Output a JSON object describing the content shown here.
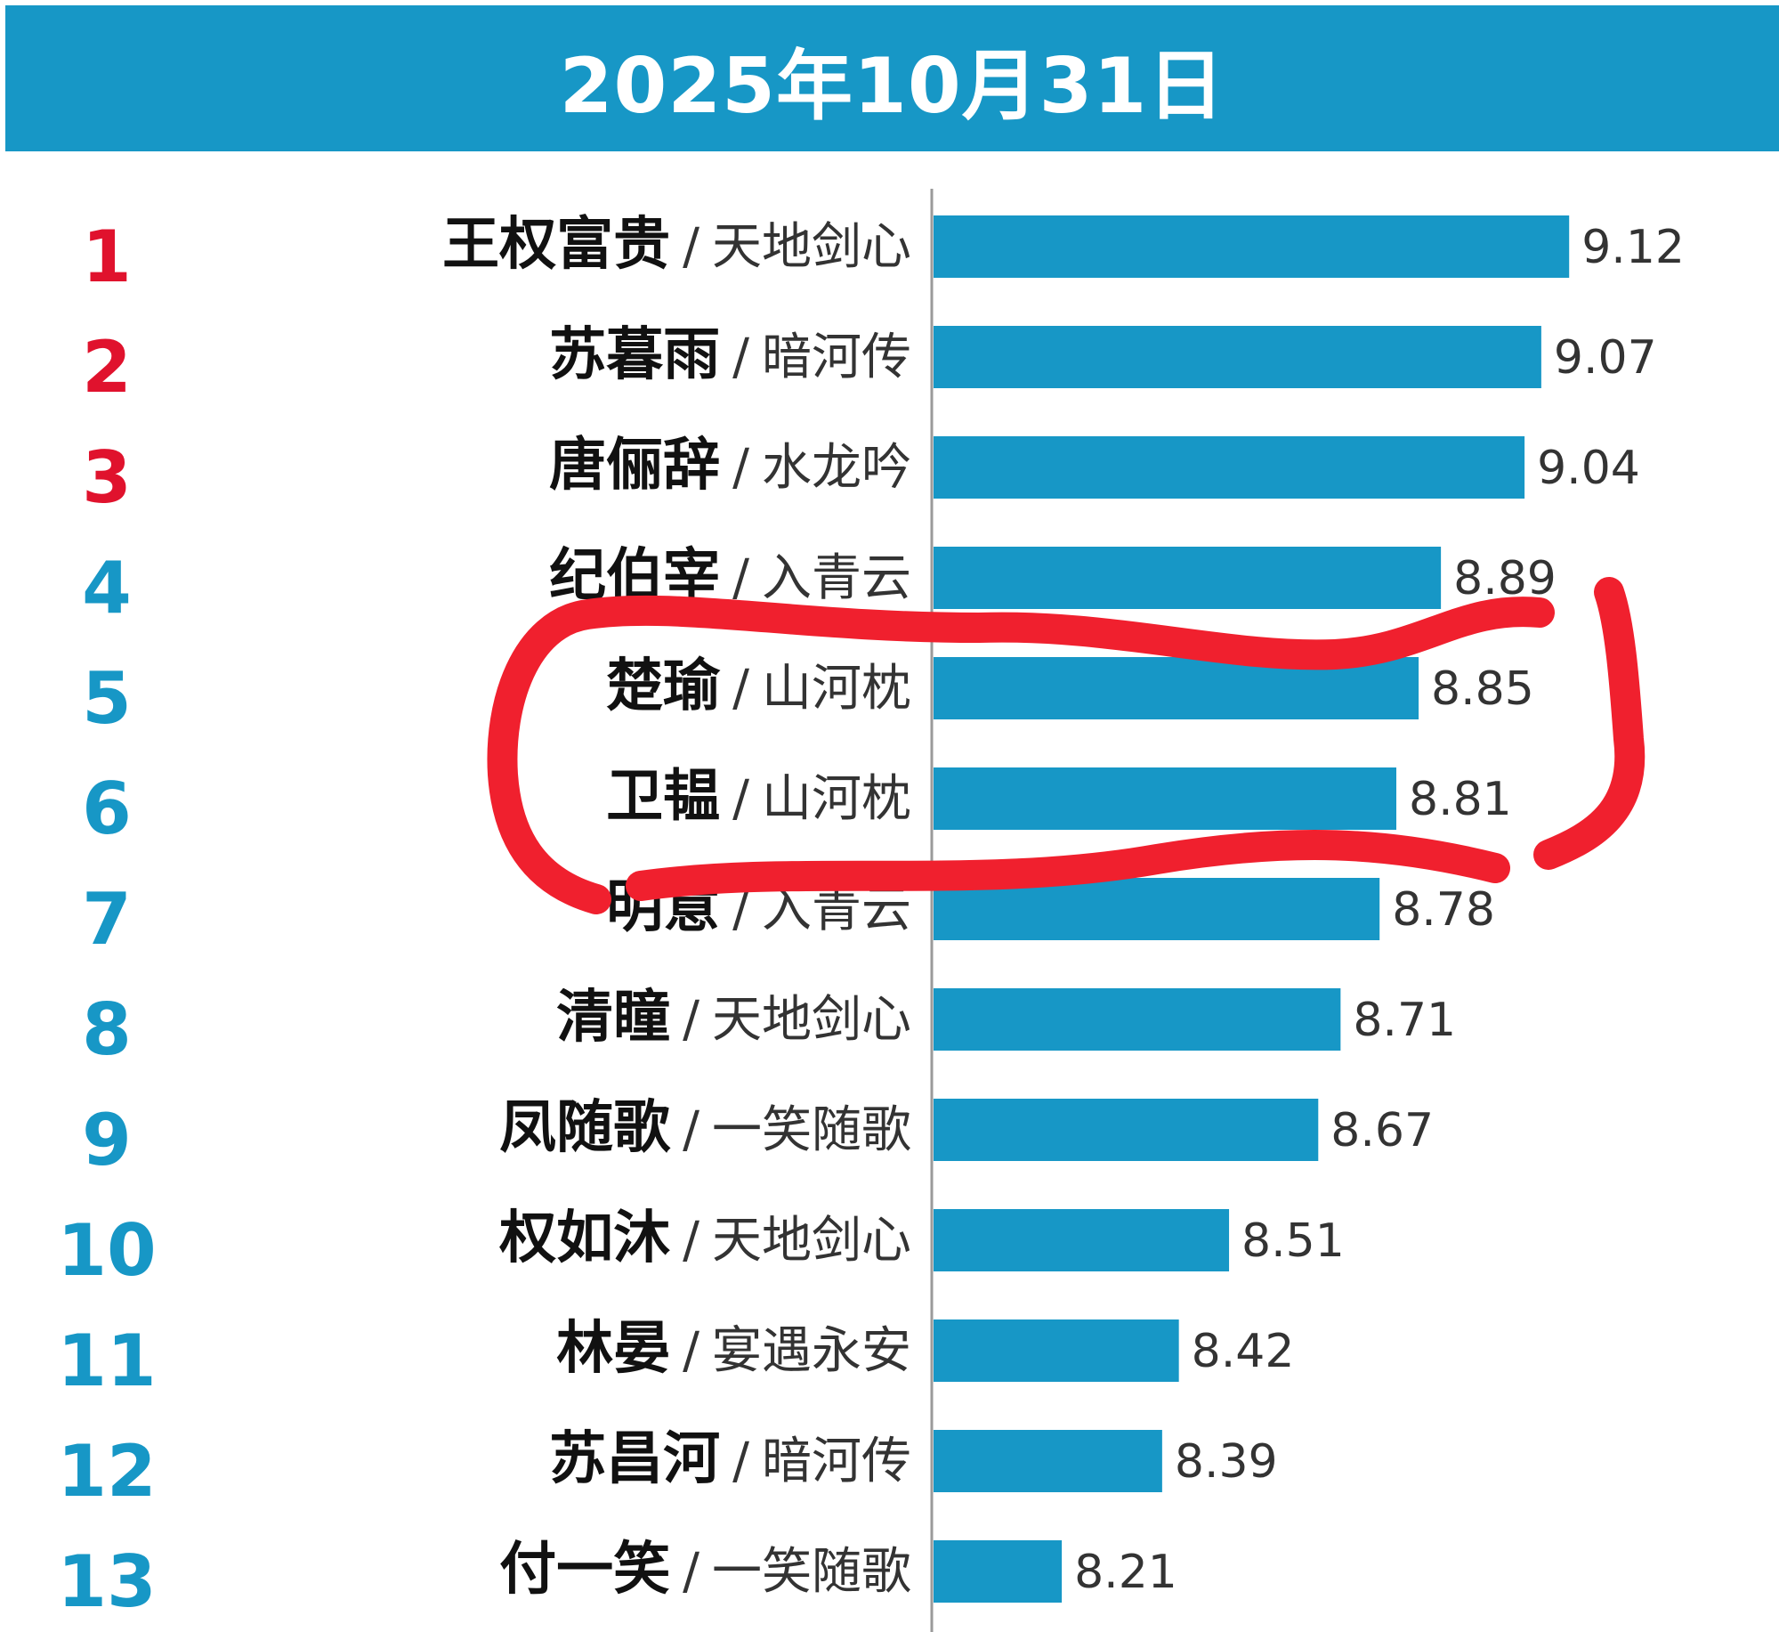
{
  "header": {
    "title": "2025年10月31日"
  },
  "colors": {
    "header_bg": "#1797c6",
    "bar": "#1797c6",
    "rank_top": "#e0122d",
    "rank_other": "#1797c6",
    "highlight": "#f0202e",
    "axis": "#9a9a9a"
  },
  "chart_data": {
    "type": "bar",
    "orientation": "horizontal",
    "title": "2025年10月31日",
    "rows": [
      {
        "rank": "1",
        "name": "王权富贵",
        "show": "天地剑心",
        "value": 9.12,
        "value_label": "9.12"
      },
      {
        "rank": "2",
        "name": "苏暮雨",
        "show": "暗河传",
        "value": 9.07,
        "value_label": "9.07"
      },
      {
        "rank": "3",
        "name": "唐俪辞",
        "show": "水龙吟",
        "value": 9.04,
        "value_label": "9.04"
      },
      {
        "rank": "4",
        "name": "纪伯宰",
        "show": "入青云",
        "value": 8.89,
        "value_label": "8.89"
      },
      {
        "rank": "5",
        "name": "楚瑜",
        "show": "山河枕",
        "value": 8.85,
        "value_label": "8.85"
      },
      {
        "rank": "6",
        "name": "卫韫",
        "show": "山河枕",
        "value": 8.81,
        "value_label": "8.81"
      },
      {
        "rank": "7",
        "name": "明意",
        "show": "入青云",
        "value": 8.78,
        "value_label": "8.78"
      },
      {
        "rank": "8",
        "name": "清瞳",
        "show": "天地剑心",
        "value": 8.71,
        "value_label": "8.71"
      },
      {
        "rank": "9",
        "name": "凤随歌",
        "show": "一笑随歌",
        "value": 8.67,
        "value_label": "8.67"
      },
      {
        "rank": "10",
        "name": "权如沐",
        "show": "天地剑心",
        "value": 8.51,
        "value_label": "8.51"
      },
      {
        "rank": "11",
        "name": "林晏",
        "show": "宴遇永安",
        "value": 8.42,
        "value_label": "8.42"
      },
      {
        "rank": "12",
        "name": "苏昌河",
        "show": "暗河传",
        "value": 8.39,
        "value_label": "8.39"
      },
      {
        "rank": "13",
        "name": "付一笑",
        "show": "一笑随歌",
        "value": 8.21,
        "value_label": "8.21"
      }
    ],
    "separator": "/",
    "value_axis_hidden": true,
    "grid": false,
    "legend": "none",
    "annotation": {
      "type": "hand-drawn circle",
      "color": "#f0202e",
      "encloses_ranks": [
        "5",
        "6"
      ]
    }
  }
}
